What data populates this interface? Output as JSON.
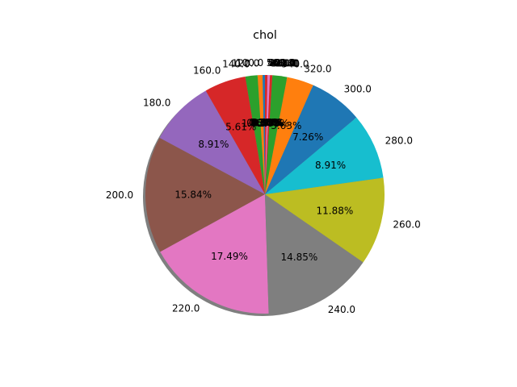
{
  "chart_data": {
    "type": "pie",
    "title": "chol",
    "start_angle_deg": 90,
    "counterclock": true,
    "shadow": true,
    "labels": [
      "100.0",
      "120.0",
      "140.0",
      "160.0",
      "180.0",
      "200.0",
      "220.0",
      "240.0",
      "260.0",
      "280.0",
      "300.0",
      "320.0",
      "340.0",
      "360.0",
      "380.0",
      "400.0",
      "420.0",
      "440.0",
      "460.0",
      "480.0",
      "500.0",
      "520.0",
      "540.0",
      "560.0"
    ],
    "values": [
      0.33,
      0.66,
      1.65,
      5.61,
      8.91,
      15.84,
      17.49,
      14.85,
      11.88,
      8.91,
      7.26,
      3.63,
      1.98,
      0.33,
      0.0,
      0.0,
      0.33,
      0.0,
      0.0,
      0.0,
      0.0,
      0.0,
      0.0,
      0.33
    ],
    "percent_labels": [
      "0.33%",
      "0.66%",
      "1.65%",
      "5.61%",
      "8.91%",
      "15.84%",
      "17.49%",
      "14.85%",
      "11.88%",
      "8.91%",
      "7.26%",
      "3.63%",
      "1.98%",
      "0.33%",
      "0.00%",
      "0.00%",
      "0.33%",
      "0.00%",
      "0.00%",
      "0.00%",
      "0.00%",
      "0.00%",
      "0.00%",
      "0.33%"
    ],
    "colors": [
      "#1f77b4",
      "#ff7f0e",
      "#2ca02c",
      "#d62728",
      "#9467bd",
      "#8c564b",
      "#e377c2",
      "#7f7f7f",
      "#bcbd22",
      "#17becf"
    ]
  }
}
